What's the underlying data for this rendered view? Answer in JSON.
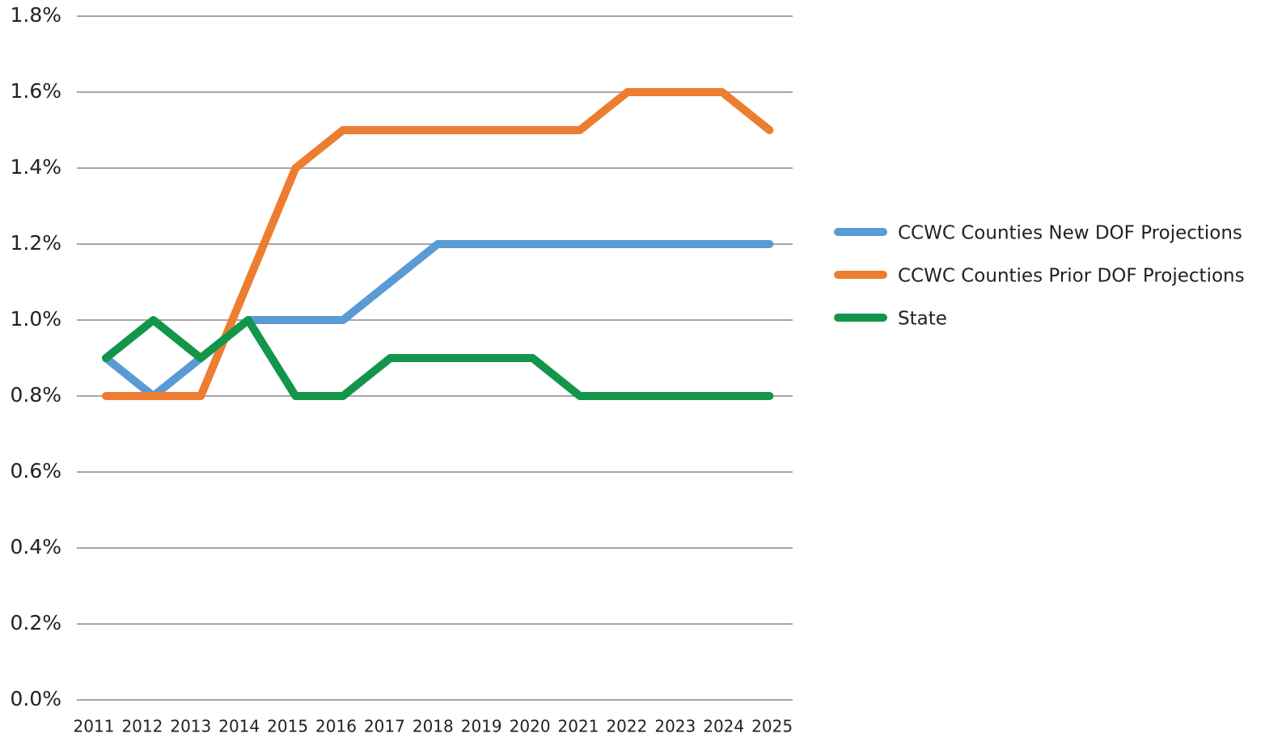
{
  "chart_data": {
    "type": "line",
    "categories": [
      "2011",
      "2012",
      "2013",
      "2014",
      "2015",
      "2016",
      "2017",
      "2018",
      "2019",
      "2020",
      "2021",
      "2022",
      "2023",
      "2024",
      "2025"
    ],
    "series": [
      {
        "name": "CCWC Counties New DOF Projections",
        "color": "#5b9bd5",
        "values": [
          0.9,
          0.8,
          0.9,
          1.0,
          1.0,
          1.0,
          1.1,
          1.2,
          1.2,
          1.2,
          1.2,
          1.2,
          1.2,
          1.2,
          1.2
        ]
      },
      {
        "name": "CCWC Counties Prior DOF Projections",
        "color": "#ed7d31",
        "values": [
          0.8,
          0.8,
          0.8,
          1.1,
          1.4,
          1.5,
          1.5,
          1.5,
          1.5,
          1.5,
          1.5,
          1.6,
          1.6,
          1.6,
          1.5
        ]
      },
      {
        "name": "State",
        "color": "#13964a",
        "values": [
          0.9,
          1.0,
          0.9,
          1.0,
          0.8,
          0.8,
          0.9,
          0.9,
          0.9,
          0.9,
          0.8,
          0.8,
          0.8,
          0.8,
          0.8
        ]
      }
    ],
    "ylim": [
      0,
      1.8
    ],
    "yticks": [
      {
        "value": 0,
        "label": "0.0%"
      },
      {
        "value": 0.2,
        "label": "0.2%"
      },
      {
        "value": 0.4,
        "label": "0.4%"
      },
      {
        "value": 0.6,
        "label": "0.6%"
      },
      {
        "value": 0.8,
        "label": "0.8%"
      },
      {
        "value": 1.0,
        "label": "1.0%"
      },
      {
        "value": 1.2,
        "label": "1.2%"
      },
      {
        "value": 1.4,
        "label": "1.4%"
      },
      {
        "value": 1.6,
        "label": "1.6%"
      },
      {
        "value": 1.8,
        "label": "1.8%"
      }
    ],
    "grid": true,
    "legend": "right"
  }
}
